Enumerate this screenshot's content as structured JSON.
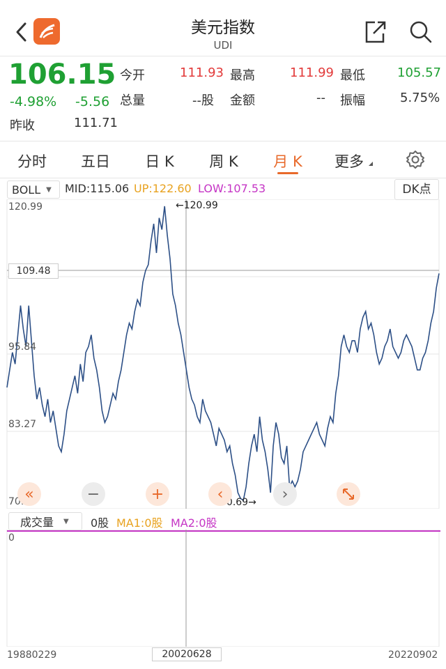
{
  "header": {
    "title": "美元指数",
    "subtitle": "UDI"
  },
  "quote": {
    "price": "106.15",
    "change_pct": "-4.98%",
    "change": "-5.56",
    "prev_close_label": "昨收",
    "prev_close": "111.71",
    "open_label": "今开",
    "open": "111.93",
    "high_label": "最高",
    "high": "111.99",
    "low_label": "最低",
    "low": "105.57",
    "volume_label": "总量",
    "volume": "--股",
    "amount_label": "金额",
    "amount": "--",
    "amplitude_label": "振幅",
    "amplitude": "5.75%"
  },
  "tabs": [
    {
      "label": "分时"
    },
    {
      "label": "五日"
    },
    {
      "label": "日 K"
    },
    {
      "label": "周 K"
    },
    {
      "label": "月 K"
    },
    {
      "label": "更多"
    }
  ],
  "indicator": {
    "name": "BOLL",
    "mid": "MID:115.06",
    "up": "UP:122.60",
    "low": "LOW:107.53",
    "dk_button": "DK点"
  },
  "volume_panel": {
    "selector": "成交量",
    "value": "0股",
    "ma1": "MA1:0股",
    "ma2": "MA2:0股",
    "zero": "0"
  },
  "colors": {
    "up": "#e23a3a",
    "down": "#1fa033",
    "accent": "#e8692a",
    "line": "#2c4f86",
    "up_band": "#e8a21f",
    "low_band": "#c535c5"
  },
  "chart_data": {
    "type": "line",
    "title": "",
    "y_ticks": [
      "120.99",
      "109.48",
      "95.84",
      "83.27",
      "70.69"
    ],
    "ylim": [
      70.69,
      120.99
    ],
    "crosshair_value": "109.48",
    "max_label": "120.99",
    "min_label": "70.69",
    "x_labels": [
      "19880229",
      "20020628",
      "20220902"
    ],
    "series": [
      {
        "values": [
          90,
          93,
          96,
          94,
          99,
          104,
          100,
          97,
          104,
          98,
          92,
          88,
          90,
          87,
          85,
          88,
          84,
          86,
          83,
          80,
          79,
          82,
          86,
          88,
          90,
          92,
          89,
          94,
          91,
          96,
          97,
          99,
          95,
          93,
          90,
          86,
          84,
          85,
          87,
          89,
          88,
          91,
          93,
          96,
          99,
          101,
          100,
          103,
          105,
          104,
          108,
          110,
          111,
          115,
          118,
          113,
          119,
          117,
          121,
          116,
          112,
          106,
          104,
          101,
          99,
          96,
          93,
          90,
          88,
          87,
          85,
          84,
          88,
          86,
          85,
          84,
          82,
          80,
          83,
          82,
          81,
          79,
          80,
          77,
          75,
          72,
          71,
          70.7,
          73,
          77,
          80,
          82,
          79,
          85,
          81,
          79,
          76,
          72,
          80,
          84,
          82,
          78,
          77,
          80,
          73,
          74,
          73,
          74,
          76,
          79,
          80,
          81,
          82,
          83,
          84,
          82,
          81,
          80,
          83,
          85,
          84,
          89,
          92,
          97,
          99,
          97,
          96,
          98,
          98,
          96,
          100,
          102,
          103,
          100,
          101,
          99,
          96,
          94,
          95,
          97,
          98,
          100,
          97,
          96,
          95,
          96,
          98,
          99,
          98,
          97,
          95,
          93,
          93,
          95,
          96,
          98,
          101,
          103,
          107,
          109.5
        ]
      }
    ]
  }
}
